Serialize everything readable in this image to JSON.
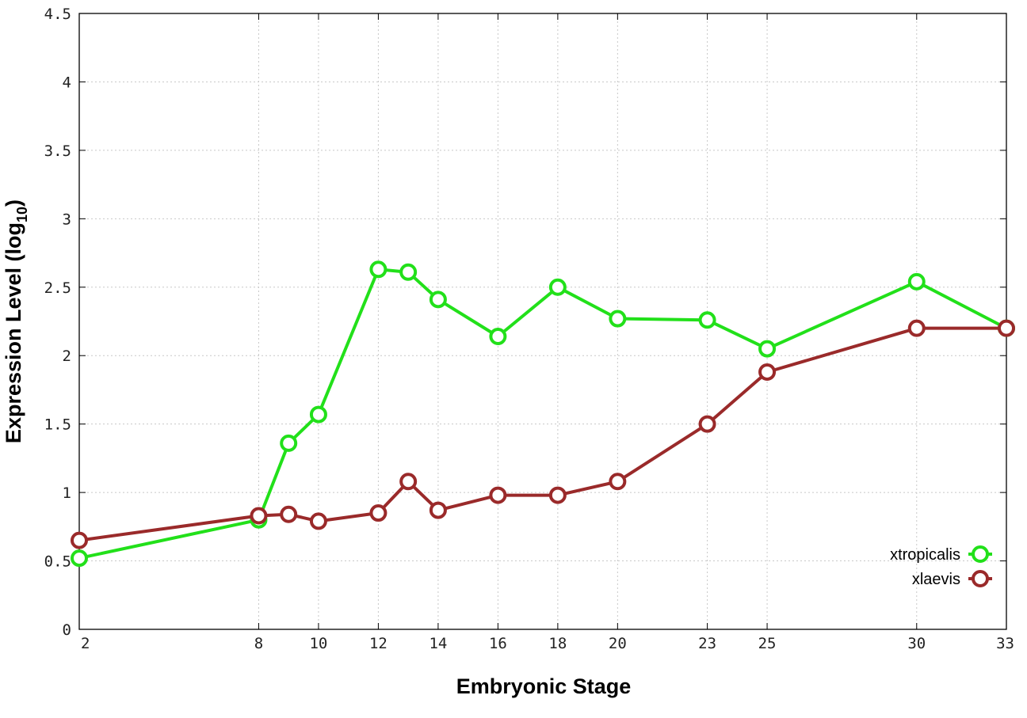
{
  "chart_data": {
    "type": "line",
    "xlabel": "Embryonic Stage",
    "ylabel_main": "Expression Level (log",
    "ylabel_sub": "10",
    "ylabel_close": ")",
    "xlim": [
      2,
      33
    ],
    "ylim": [
      0,
      4.5
    ],
    "x_ticks": [
      2,
      8,
      10,
      12,
      14,
      16,
      18,
      20,
      23,
      25,
      30,
      33
    ],
    "y_ticks": [
      0,
      0.5,
      1,
      1.5,
      2,
      2.5,
      3,
      3.5,
      4,
      4.5
    ],
    "y_tick_labels": [
      "0",
      "0.5",
      "1",
      "1.5",
      "2",
      "2.5",
      "3",
      "3.5",
      "4",
      "4.5"
    ],
    "grid": true,
    "legend_position": "bottom-right",
    "series": [
      {
        "name": "xtropicalis",
        "color": "#22e01a",
        "x": [
          2,
          8,
          9,
          10,
          12,
          13,
          14,
          16,
          18,
          20,
          23,
          25,
          30,
          33
        ],
        "y": [
          0.52,
          0.8,
          1.36,
          1.57,
          2.63,
          2.61,
          2.41,
          2.14,
          2.5,
          2.27,
          2.26,
          2.05,
          2.54,
          2.2
        ]
      },
      {
        "name": "xlaevis",
        "color": "#9a2a2a",
        "x": [
          2,
          8,
          9,
          10,
          12,
          13,
          14,
          16,
          18,
          20,
          23,
          25,
          30,
          33
        ],
        "y": [
          0.65,
          0.83,
          0.84,
          0.79,
          0.85,
          1.08,
          0.87,
          0.98,
          0.98,
          1.08,
          1.5,
          1.88,
          2.2,
          2.2
        ]
      }
    ]
  }
}
